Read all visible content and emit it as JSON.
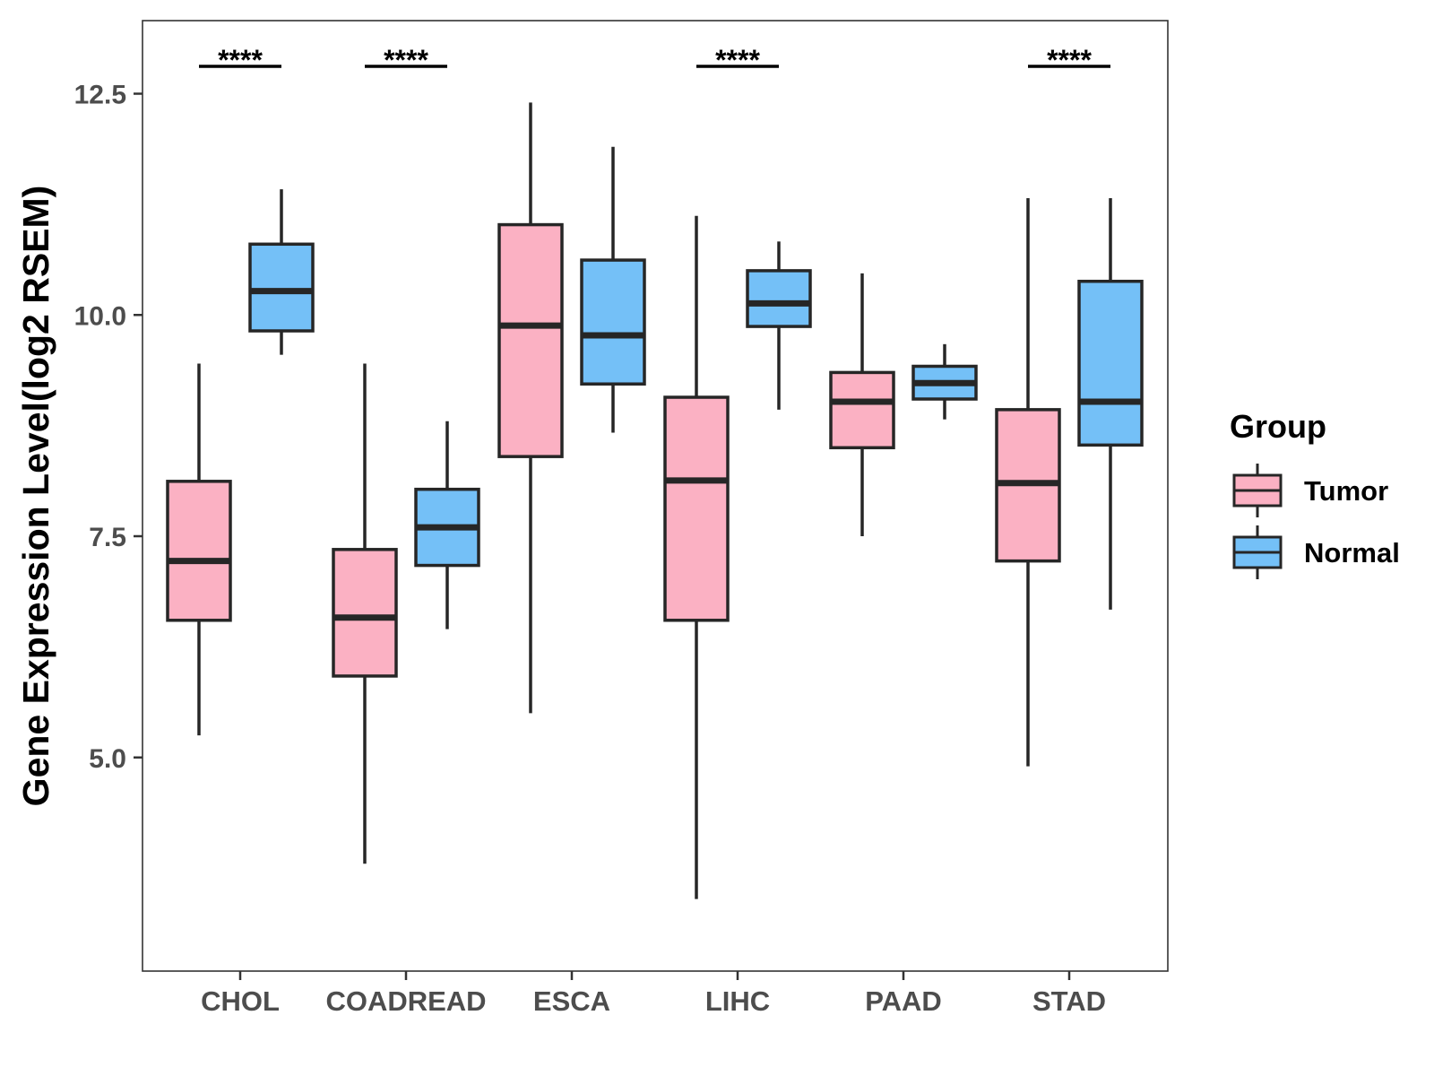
{
  "chart_data": {
    "type": "boxplot",
    "title": "",
    "xlabel": "",
    "ylabel": "Gene Expression Level(log2 RSEM)",
    "ylim": [
      2.5,
      13.3
    ],
    "yticks": [
      5.0,
      7.5,
      10.0,
      12.5
    ],
    "ytick_labels": [
      "5.0",
      "7.5",
      "10.0",
      "12.5"
    ],
    "grid": false,
    "categories": [
      "CHOL",
      "COADREAD",
      "ESCA",
      "LIHC",
      "PAAD",
      "STAD"
    ],
    "legend": {
      "title": "Group",
      "position": "right",
      "entries": [
        {
          "name": "Tumor",
          "color": "#FBB1C3"
        },
        {
          "name": "Normal",
          "color": "#74C0F7"
        }
      ]
    },
    "series": [
      {
        "name": "Tumor",
        "color": "#FBB1C3",
        "boxes": [
          {
            "min": 5.25,
            "q1": 6.55,
            "median": 7.22,
            "q3": 8.12,
            "max": 9.45
          },
          {
            "min": 3.8,
            "q1": 5.92,
            "median": 6.58,
            "q3": 7.35,
            "max": 9.45
          },
          {
            "min": 5.5,
            "q1": 8.4,
            "median": 9.88,
            "q3": 11.02,
            "max": 12.4
          },
          {
            "min": 3.4,
            "q1": 6.55,
            "median": 8.13,
            "q3": 9.07,
            "max": 11.12
          },
          {
            "min": 7.5,
            "q1": 8.5,
            "median": 9.02,
            "q3": 9.35,
            "max": 10.47
          },
          {
            "min": 4.9,
            "q1": 7.22,
            "median": 8.1,
            "q3": 8.93,
            "max": 11.32
          }
        ]
      },
      {
        "name": "Normal",
        "color": "#74C0F7",
        "boxes": [
          {
            "min": 9.55,
            "q1": 9.82,
            "median": 10.27,
            "q3": 10.8,
            "max": 11.42
          },
          {
            "min": 6.45,
            "q1": 7.17,
            "median": 7.6,
            "q3": 8.03,
            "max": 8.8
          },
          {
            "min": 8.67,
            "q1": 9.22,
            "median": 9.77,
            "q3": 10.62,
            "max": 11.9
          },
          {
            "min": 8.93,
            "q1": 9.87,
            "median": 10.13,
            "q3": 10.5,
            "max": 10.83
          },
          {
            "min": 8.82,
            "q1": 9.05,
            "median": 9.23,
            "q3": 9.42,
            "max": 9.67
          },
          {
            "min": 6.67,
            "q1": 8.53,
            "median": 9.02,
            "q3": 10.38,
            "max": 11.32
          }
        ]
      }
    ],
    "significance": [
      {
        "category": "CHOL",
        "label": "****"
      },
      {
        "category": "COADREAD",
        "label": "****"
      },
      {
        "category": "LIHC",
        "label": "****"
      },
      {
        "category": "STAD",
        "label": "****"
      }
    ]
  }
}
